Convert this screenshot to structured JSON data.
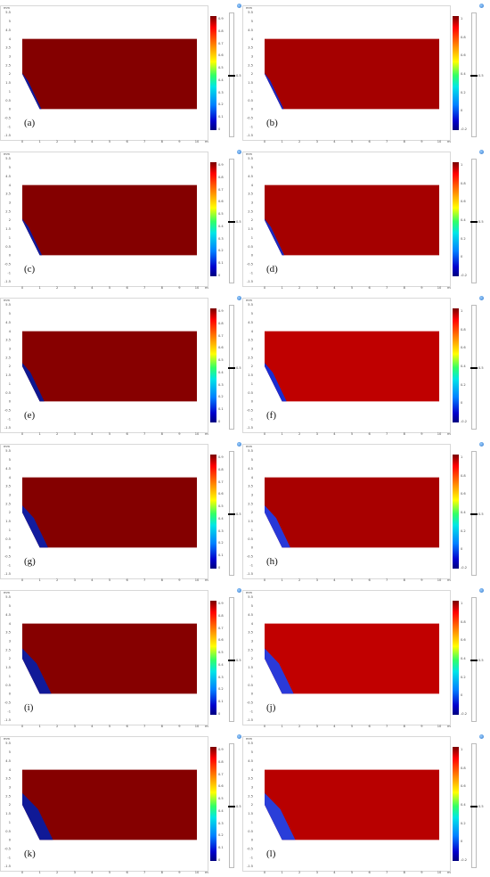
{
  "axis": {
    "unit": "mm",
    "x_ticks": [
      "0",
      "1",
      "2",
      "3",
      "4",
      "5",
      "6",
      "7",
      "8",
      "9",
      "10"
    ],
    "y_ticks": [
      "5.5",
      "5",
      "4.5",
      "4",
      "3.5",
      "3",
      "2.5",
      "2",
      "1.5",
      "1",
      "0.5",
      "0",
      "-0.5",
      "-1",
      "-1.5"
    ]
  },
  "colorbar_ticks_a": [
    "0.9",
    "0.8",
    "0.7",
    "0.6",
    "0.5",
    "0.4",
    "0.3",
    "0.2",
    "0.1",
    "0"
  ],
  "colorbar_ticks_b": [
    "1",
    "0.8",
    "0.6",
    "0.4",
    "0.2",
    "0",
    "-0.2"
  ],
  "threshold_label": "0.5",
  "colors": {
    "dark_red": "#7f0000",
    "red": "#9e0000",
    "bright_red": "#c30000",
    "blue_dark": "#101a9c",
    "blue_bright": "#2636d8"
  },
  "panels": [
    {
      "label": "(a)",
      "fill": "#840000",
      "front": 0.05,
      "blue": "#101a9c",
      "ticks": "a"
    },
    {
      "label": "(b)",
      "fill": "#a50000",
      "front": 0.05,
      "blue": "#1b28c0",
      "ticks": "b"
    },
    {
      "label": "(c)",
      "fill": "#840000",
      "front": 0.08,
      "blue": "#101a9c",
      "ticks": "a"
    },
    {
      "label": "(d)",
      "fill": "#a50000",
      "front": 0.08,
      "blue": "#1b28c0",
      "ticks": "b"
    },
    {
      "label": "(e)",
      "fill": "#870000",
      "front": 0.22,
      "blue": "#0f1790",
      "ticks": "a"
    },
    {
      "label": "(f)",
      "fill": "#bf0000",
      "front": 0.22,
      "blue": "#1a2cd0",
      "ticks": "b"
    },
    {
      "label": "(g)",
      "fill": "#840000",
      "front": 0.45,
      "blue": "#121c9e",
      "ticks": "a"
    },
    {
      "label": "(h)",
      "fill": "#a80000",
      "front": 0.45,
      "blue": "#2838d8",
      "ticks": "b"
    },
    {
      "label": "(i)",
      "fill": "#860000",
      "front": 0.65,
      "blue": "#111a98",
      "ticks": "a"
    },
    {
      "label": "(j)",
      "fill": "#c10000",
      "front": 0.65,
      "blue": "#2a3ad9",
      "ticks": "b"
    },
    {
      "label": "(k)",
      "fill": "#850000",
      "front": 0.75,
      "blue": "#101996",
      "ticks": "a"
    },
    {
      "label": "(l)",
      "fill": "#b80000",
      "front": 0.75,
      "blue": "#2a3ed9",
      "ticks": "b"
    }
  ]
}
